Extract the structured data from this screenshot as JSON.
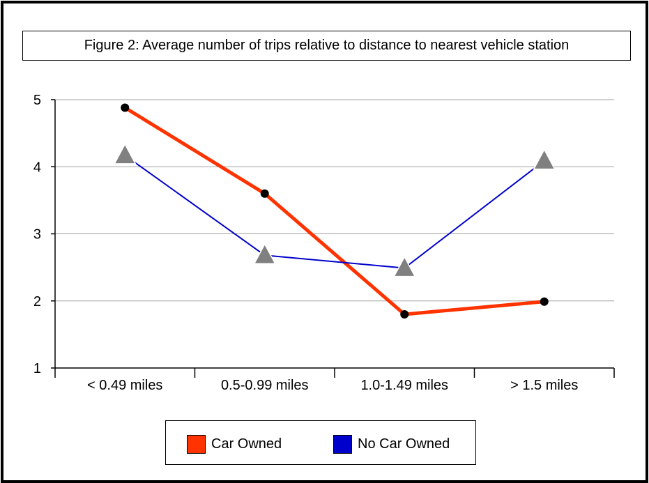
{
  "chart_data": {
    "type": "line",
    "title": "Figure 2: Average number of trips relative to distance to nearest vehicle station",
    "xlabel": "",
    "ylabel": "",
    "categories": [
      "< 0.49 miles",
      "0.5-0.99 miles",
      "1.0-1.49 miles",
      "> 1.5 miles"
    ],
    "ylim": [
      1,
      5
    ],
    "yticks": [
      "1",
      "2",
      "3",
      "4",
      "5"
    ],
    "grid": true,
    "legend_position": "bottom",
    "series": [
      {
        "name": "Car Owned",
        "values": [
          4.88,
          3.6,
          1.8,
          1.99
        ],
        "color": "#ff3300",
        "marker": "circle"
      },
      {
        "name": "No Car Owned",
        "values": [
          4.17,
          2.68,
          2.49,
          4.09
        ],
        "color": "#0000cc",
        "marker": "triangle"
      }
    ]
  },
  "colors": {
    "grid": "#a0a0a0",
    "marker_triangle": "#808080",
    "marker_dot": "#000000",
    "car_owned_swatch": "#ff3300",
    "no_car_owned_swatch": "#0000cc"
  }
}
